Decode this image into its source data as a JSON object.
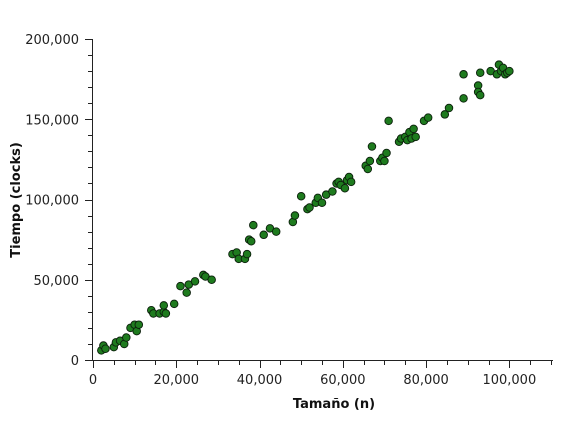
{
  "chart_data": {
    "type": "scatter",
    "title": "",
    "xlabel": "Tamaño (n)",
    "ylabel": "Tiempo (clocks)",
    "xlim": [
      0,
      110000
    ],
    "ylim": [
      0,
      200000
    ],
    "x_ticks": [
      0,
      20000,
      40000,
      60000,
      80000,
      100000
    ],
    "x_minor_step": 5000,
    "y_ticks": [
      0,
      50000,
      100000,
      150000,
      200000
    ],
    "y_minor_step": 10000,
    "x_tick_labels": [
      "0",
      "20,000",
      "40,000",
      "60,000",
      "80,000",
      "100,000"
    ],
    "y_tick_labels": [
      "0",
      "50,000",
      "100,000",
      "150,000",
      "200,000"
    ],
    "grid": false,
    "marker_color": "#1e7b1e",
    "points": [
      {
        "x": 2000,
        "y": 6000
      },
      {
        "x": 2500,
        "y": 9000
      },
      {
        "x": 3000,
        "y": 7000
      },
      {
        "x": 5000,
        "y": 8000
      },
      {
        "x": 5500,
        "y": 11000
      },
      {
        "x": 6500,
        "y": 12000
      },
      {
        "x": 7500,
        "y": 10000
      },
      {
        "x": 8000,
        "y": 14000
      },
      {
        "x": 9000,
        "y": 20000
      },
      {
        "x": 10000,
        "y": 22000
      },
      {
        "x": 10500,
        "y": 18000
      },
      {
        "x": 11000,
        "y": 22000
      },
      {
        "x": 14000,
        "y": 31000
      },
      {
        "x": 14500,
        "y": 29000
      },
      {
        "x": 16000,
        "y": 29000
      },
      {
        "x": 17000,
        "y": 30000
      },
      {
        "x": 17000,
        "y": 34000
      },
      {
        "x": 17500,
        "y": 29000
      },
      {
        "x": 19500,
        "y": 35000
      },
      {
        "x": 21000,
        "y": 46000
      },
      {
        "x": 22500,
        "y": 42000
      },
      {
        "x": 23000,
        "y": 47000
      },
      {
        "x": 24500,
        "y": 49000
      },
      {
        "x": 26500,
        "y": 53000
      },
      {
        "x": 27000,
        "y": 52000
      },
      {
        "x": 28500,
        "y": 50000
      },
      {
        "x": 33500,
        "y": 66000
      },
      {
        "x": 34500,
        "y": 67000
      },
      {
        "x": 35000,
        "y": 63000
      },
      {
        "x": 36500,
        "y": 63000
      },
      {
        "x": 37000,
        "y": 66000
      },
      {
        "x": 37500,
        "y": 75000
      },
      {
        "x": 38000,
        "y": 74000
      },
      {
        "x": 38500,
        "y": 84000
      },
      {
        "x": 41000,
        "y": 78000
      },
      {
        "x": 42500,
        "y": 82000
      },
      {
        "x": 44000,
        "y": 80000
      },
      {
        "x": 48000,
        "y": 86000
      },
      {
        "x": 48500,
        "y": 90000
      },
      {
        "x": 50000,
        "y": 102000
      },
      {
        "x": 51500,
        "y": 94000
      },
      {
        "x": 52000,
        "y": 95000
      },
      {
        "x": 53500,
        "y": 98000
      },
      {
        "x": 54000,
        "y": 101000
      },
      {
        "x": 55000,
        "y": 98000
      },
      {
        "x": 56000,
        "y": 103000
      },
      {
        "x": 57500,
        "y": 105000
      },
      {
        "x": 58500,
        "y": 110000
      },
      {
        "x": 59000,
        "y": 111000
      },
      {
        "x": 59500,
        "y": 109000
      },
      {
        "x": 60500,
        "y": 107000
      },
      {
        "x": 61000,
        "y": 112000
      },
      {
        "x": 61500,
        "y": 114000
      },
      {
        "x": 62000,
        "y": 111000
      },
      {
        "x": 65500,
        "y": 121000
      },
      {
        "x": 66000,
        "y": 119000
      },
      {
        "x": 66500,
        "y": 124000
      },
      {
        "x": 67000,
        "y": 133000
      },
      {
        "x": 69000,
        "y": 124000
      },
      {
        "x": 69500,
        "y": 126000
      },
      {
        "x": 70000,
        "y": 124000
      },
      {
        "x": 70500,
        "y": 129000
      },
      {
        "x": 71000,
        "y": 149000
      },
      {
        "x": 73500,
        "y": 136000
      },
      {
        "x": 74000,
        "y": 138000
      },
      {
        "x": 75000,
        "y": 139000
      },
      {
        "x": 75500,
        "y": 137000
      },
      {
        "x": 76000,
        "y": 142000
      },
      {
        "x": 76500,
        "y": 138000
      },
      {
        "x": 77000,
        "y": 144000
      },
      {
        "x": 77500,
        "y": 139000
      },
      {
        "x": 79500,
        "y": 149000
      },
      {
        "x": 80500,
        "y": 151000
      },
      {
        "x": 84500,
        "y": 153000
      },
      {
        "x": 85500,
        "y": 157000
      },
      {
        "x": 89000,
        "y": 163000
      },
      {
        "x": 89000,
        "y": 178000
      },
      {
        "x": 92500,
        "y": 171000
      },
      {
        "x": 92500,
        "y": 167000
      },
      {
        "x": 93000,
        "y": 165000
      },
      {
        "x": 93000,
        "y": 179000
      },
      {
        "x": 95500,
        "y": 180000
      },
      {
        "x": 97000,
        "y": 178000
      },
      {
        "x": 97500,
        "y": 184000
      },
      {
        "x": 98000,
        "y": 180000
      },
      {
        "x": 98500,
        "y": 182000
      },
      {
        "x": 99000,
        "y": 178000
      },
      {
        "x": 99500,
        "y": 179000
      },
      {
        "x": 100000,
        "y": 180000
      }
    ]
  }
}
